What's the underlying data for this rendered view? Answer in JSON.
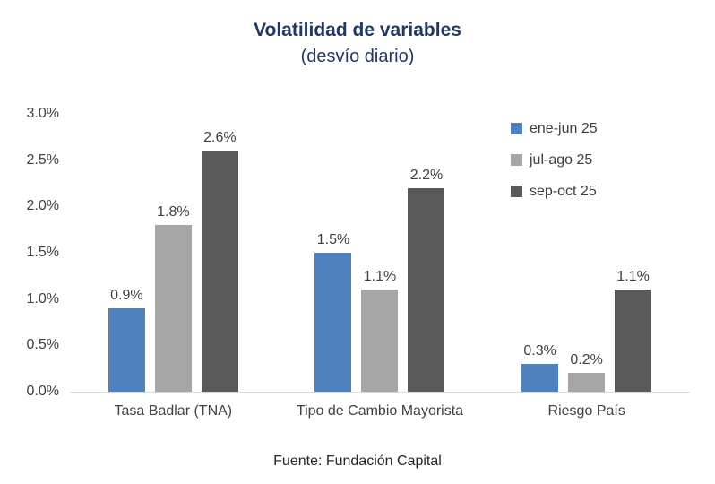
{
  "title": "Volatilidad de variables",
  "subtitle": "(desvío diario)",
  "source": "Fuente: Fundación Capital",
  "colors": {
    "title_text": "#1F3864",
    "axis_line": "#D9D9D9",
    "tick_text": "#404040",
    "series_blue": "#4E81BD",
    "series_light_gray": "#A6A6A6",
    "series_dark_gray": "#595959"
  },
  "chart_data": {
    "type": "bar",
    "title": "Volatilidad de variables",
    "subtitle": "(desvío diario)",
    "categories": [
      "Tasa Badlar (TNA)",
      "Tipo de Cambio Mayorista",
      "Riesgo País"
    ],
    "series": [
      {
        "name": "ene-jun 25",
        "color": "#4E81BD",
        "values": [
          0.9,
          1.5,
          0.3
        ],
        "labels": [
          "0.9%",
          "1.5%",
          "0.3%"
        ]
      },
      {
        "name": "jul-ago 25",
        "color": "#A6A6A6",
        "values": [
          1.8,
          1.1,
          0.2
        ],
        "labels": [
          "1.8%",
          "1.1%",
          "0.2%"
        ]
      },
      {
        "name": "sep-oct 25",
        "color": "#595959",
        "values": [
          2.6,
          2.2,
          1.1
        ],
        "labels": [
          "2.6%",
          "2.2%",
          "1.1%"
        ]
      }
    ],
    "ylim": [
      0,
      3.0
    ],
    "yticks": [
      "3.0%",
      "2.5%",
      "2.0%",
      "1.5%",
      "1.0%",
      "0.5%",
      "0.0%"
    ],
    "grid": false,
    "legend_position": "right-top",
    "xlabel": "",
    "ylabel": ""
  }
}
